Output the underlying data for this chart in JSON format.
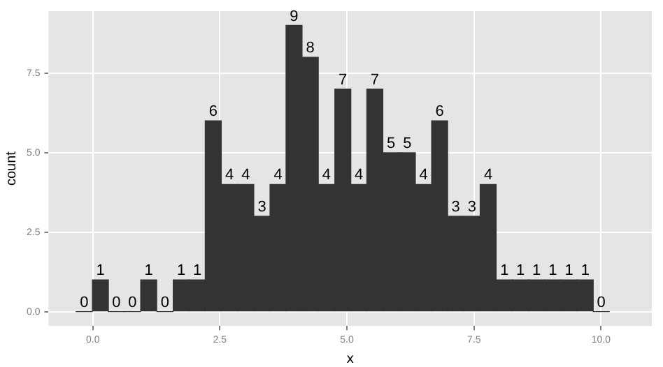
{
  "chart_data": {
    "type": "histogram",
    "xlabel": "x",
    "ylabel": "count",
    "bins": [
      -0.33,
      -0.01,
      0.31,
      0.62,
      0.94,
      1.26,
      1.58,
      1.9,
      2.21,
      2.53,
      2.85,
      3.17,
      3.49,
      3.8,
      4.12,
      4.44,
      4.76,
      5.08,
      5.39,
      5.71,
      6.03,
      6.35,
      6.67,
      6.98,
      7.3,
      7.62,
      7.94,
      8.26,
      8.57,
      8.89,
      9.21,
      9.53,
      9.85,
      10.16
    ],
    "values": [
      0,
      1,
      0,
      0,
      1,
      0,
      1,
      1,
      6,
      4,
      4,
      3,
      4,
      9,
      8,
      4,
      7,
      4,
      7,
      5,
      5,
      4,
      6,
      3,
      3,
      4,
      1,
      1,
      1,
      1,
      1,
      1,
      0
    ],
    "color": "#333333",
    "data_labels": true,
    "grid": true,
    "legend": false,
    "xlim": [
      -0.87,
      11
    ],
    "xticks": [
      {
        "value": 0,
        "label": "0.0"
      },
      {
        "value": 2.5,
        "label": "2.5"
      },
      {
        "value": 5,
        "label": "5.0"
      },
      {
        "value": 7.5,
        "label": "7.5"
      },
      {
        "value": 10,
        "label": "10.0"
      }
    ],
    "ylim": [
      -0.45,
      9.45
    ],
    "yticks": [
      {
        "value": 0,
        "label": "0.0"
      },
      {
        "value": 2.5,
        "label": "2.5"
      },
      {
        "value": 5,
        "label": "5.0"
      },
      {
        "value": 7.5,
        "label": "7.5"
      }
    ]
  }
}
